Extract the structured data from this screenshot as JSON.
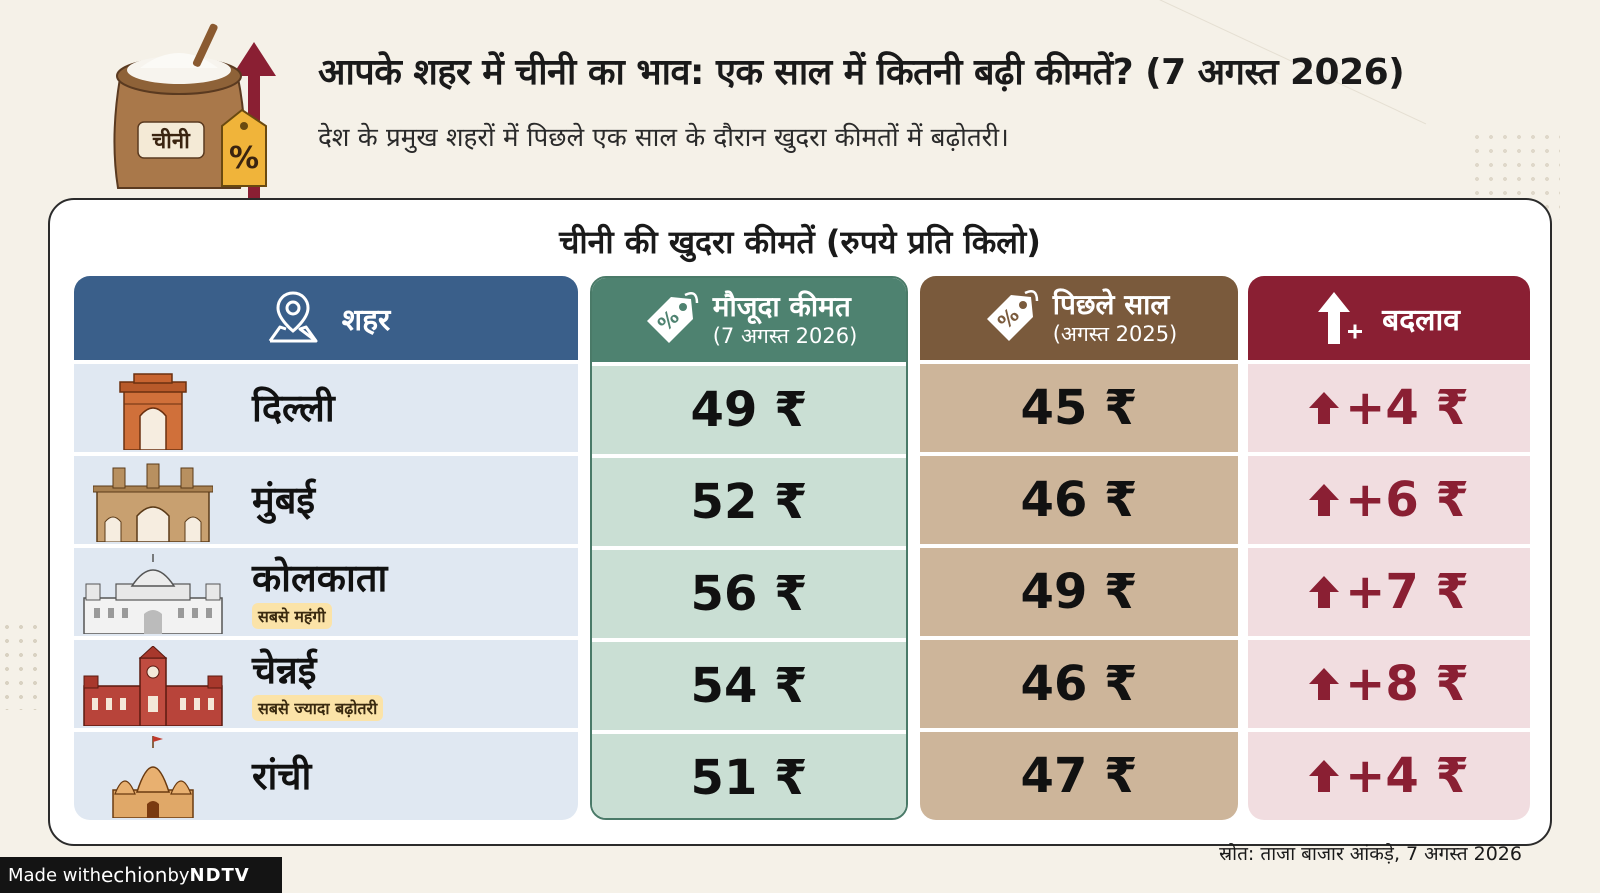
{
  "header": {
    "title": "आपके शहर में चीनी का भाव: एक साल में कितनी बढ़ी कीमतें? (7 अगस्त 2026)",
    "subtitle": "देश के प्रमुख शहरों में पिछले एक साल के दौरान खुदरा कीमतों में बढ़ोतरी।",
    "sack_label": "चीनी",
    "tag_label": "%"
  },
  "card": {
    "title": "चीनी की खुदरा कीमतें (रुपये प्रति किलो)"
  },
  "columns": {
    "city": {
      "label": "शहर",
      "icon": "map-pin-icon"
    },
    "current": {
      "label": "मौजूदा कीमत",
      "sublabel": "(7 अगस्त 2026)",
      "icon": "price-tag-icon"
    },
    "previous": {
      "label": "पिछले साल",
      "sublabel": "(अगस्त 2025)",
      "icon": "price-tag-icon"
    },
    "change": {
      "label": "बदलाव",
      "icon": "arrow-up-plus-icon"
    }
  },
  "rows": [
    {
      "city": "दिल्ली",
      "badge": "",
      "current": "49 ₹",
      "previous": "45 ₹",
      "change": "+4 ₹",
      "icon": "india-gate-icon"
    },
    {
      "city": "मुंबई",
      "badge": "",
      "current": "52 ₹",
      "previous": "46 ₹",
      "change": "+6 ₹",
      "icon": "gateway-of-india-icon"
    },
    {
      "city": "कोलकाता",
      "badge": "सबसे महंगी",
      "current": "56 ₹",
      "previous": "49 ₹",
      "change": "+7 ₹",
      "icon": "victoria-memorial-icon"
    },
    {
      "city": "चेन्नई",
      "badge": "सबसे ज्यादा बढ़ोतरी",
      "current": "54 ₹",
      "previous": "46 ₹",
      "change": "+8 ₹",
      "icon": "chennai-central-icon"
    },
    {
      "city": "रांची",
      "badge": "",
      "current": "51 ₹",
      "previous": "47 ₹",
      "change": "+4 ₹",
      "icon": "temple-icon"
    }
  ],
  "footer": {
    "source": "स्रोत: ताजा बाजार आंकड़े, 7 अगस्त 2026",
    "made_prefix": "Made with ",
    "made_brand": "echion",
    "made_by": " by ",
    "made_ndtv": "NDTV"
  },
  "colors": {
    "city_header": "#3a5f8a",
    "current_header": "#4e8270",
    "previous_header": "#7a5a3c",
    "change_header": "#8a1f33",
    "change_text": "#8a1f33"
  }
}
